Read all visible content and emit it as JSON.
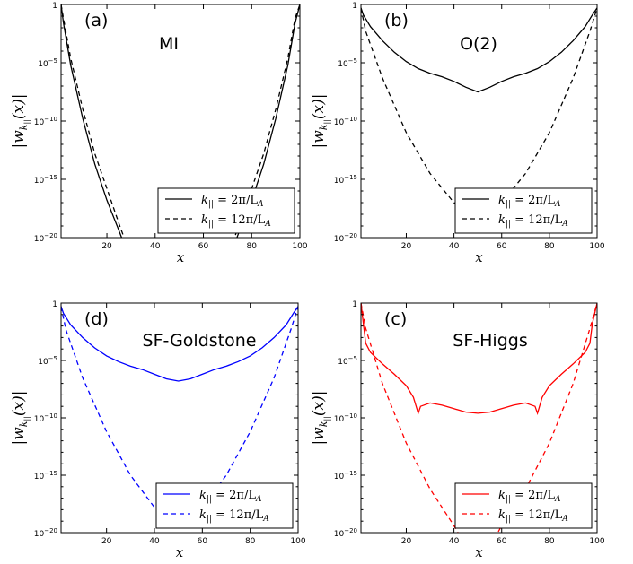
{
  "chart_data": [
    {
      "type": "line",
      "panel_label": "(a)",
      "title": "MI",
      "xlabel": "x",
      "ylabel": "|w_{k_||}(x)|",
      "xlim": [
        1,
        100
      ],
      "ylim_log10": [
        -20,
        0
      ],
      "scale": "log",
      "x_ticks": [
        "20",
        "40",
        "60",
        "80",
        "100"
      ],
      "x_tick_values": [
        20,
        40,
        60,
        80,
        100
      ],
      "y_ticks": [
        "1",
        "10^-5",
        "10^-10",
        "10^-15",
        "10^-20"
      ],
      "y_tick_exponents": [
        0,
        -5,
        -10,
        -15,
        -20
      ],
      "legend": [
        "k_|| = 2π/L_A",
        "k_|| = 12π/L_A"
      ],
      "color": "#000000",
      "series": [
        {
          "name": "k_|| = 2π/L_A",
          "style": "solid",
          "points": [
            [
              1,
              0
            ],
            [
              2,
              -1.6
            ],
            [
              5,
              -5.2
            ],
            [
              10,
              -9.8
            ],
            [
              15,
              -13.7
            ],
            [
              20,
              -16.8
            ],
            [
              25,
              -19.4
            ],
            [
              27,
              -20.5
            ],
            [
              73,
              -20.5
            ],
            [
              75,
              -19.4
            ],
            [
              80,
              -16.8
            ],
            [
              85,
              -13.7
            ],
            [
              90,
              -9.8
            ],
            [
              95,
              -5.2
            ],
            [
              98,
              -1.6
            ],
            [
              100,
              0
            ]
          ]
        },
        {
          "name": "k_|| = 12π/L_A",
          "style": "dashed",
          "points": [
            [
              1,
              0
            ],
            [
              2,
              -1.2
            ],
            [
              5,
              -4.6
            ],
            [
              10,
              -9.0
            ],
            [
              15,
              -12.8
            ],
            [
              20,
              -15.8
            ],
            [
              25,
              -18.8
            ],
            [
              28,
              -20.5
            ],
            [
              72,
              -20.5
            ],
            [
              75,
              -18.8
            ],
            [
              80,
              -15.8
            ],
            [
              85,
              -12.8
            ],
            [
              90,
              -9.0
            ],
            [
              95,
              -4.6
            ],
            [
              98,
              -1.2
            ],
            [
              100,
              0
            ]
          ]
        }
      ]
    },
    {
      "type": "line",
      "panel_label": "(b)",
      "title": "O(2)",
      "xlabel": "x",
      "ylabel": "|w_{k_||}(x)|",
      "xlim": [
        1,
        100
      ],
      "ylim_log10": [
        -20,
        0
      ],
      "scale": "log",
      "x_ticks": [
        "20",
        "40",
        "60",
        "80",
        "100"
      ],
      "x_tick_values": [
        20,
        40,
        60,
        80,
        100
      ],
      "y_ticks": [
        "1",
        "10^-5",
        "10^-10",
        "10^-15",
        "10^-20"
      ],
      "y_tick_exponents": [
        0,
        -5,
        -10,
        -15,
        -20
      ],
      "legend": [
        "k_|| = 2π/L_A",
        "k_|| = 12π/L_A"
      ],
      "color": "#000000",
      "series": [
        {
          "name": "k_|| = 2π/L_A",
          "style": "solid",
          "points": [
            [
              1,
              -0.3
            ],
            [
              2,
              -0.9
            ],
            [
              5,
              -1.9
            ],
            [
              10,
              -3.1
            ],
            [
              15,
              -4.1
            ],
            [
              20,
              -4.9
            ],
            [
              25,
              -5.5
            ],
            [
              30,
              -5.9
            ],
            [
              35,
              -6.2
            ],
            [
              40,
              -6.6
            ],
            [
              45,
              -7.1
            ],
            [
              50,
              -7.5
            ],
            [
              55,
              -7.1
            ],
            [
              60,
              -6.6
            ],
            [
              65,
              -6.2
            ],
            [
              70,
              -5.9
            ],
            [
              75,
              -5.5
            ],
            [
              80,
              -4.9
            ],
            [
              85,
              -4.1
            ],
            [
              90,
              -3.1
            ],
            [
              95,
              -1.9
            ],
            [
              98,
              -0.9
            ],
            [
              100,
              -0.3
            ]
          ]
        },
        {
          "name": "k_|| = 12π/L_A",
          "style": "dashed",
          "points": [
            [
              1,
              -0.3
            ],
            [
              3,
              -2.3
            ],
            [
              10,
              -6.3
            ],
            [
              20,
              -11.0
            ],
            [
              30,
              -14.5
            ],
            [
              40,
              -17.0
            ],
            [
              50,
              -18.8
            ],
            [
              60,
              -17.0
            ],
            [
              70,
              -14.5
            ],
            [
              80,
              -11.0
            ],
            [
              90,
              -6.3
            ],
            [
              97,
              -2.3
            ],
            [
              100,
              -0.3
            ]
          ]
        }
      ]
    },
    {
      "type": "line",
      "panel_label": "(d)",
      "title": "SF-Goldstone",
      "xlabel": "x",
      "ylabel": "|w_{k_||}(x)|",
      "xlim": [
        1,
        100
      ],
      "ylim_log10": [
        -20,
        0
      ],
      "scale": "log",
      "x_ticks": [
        "20",
        "40",
        "60",
        "80",
        "100"
      ],
      "x_tick_values": [
        20,
        40,
        60,
        80,
        100
      ],
      "y_ticks": [
        "1",
        "10^-5",
        "10^-10",
        "10^-15",
        "10^-20"
      ],
      "y_tick_exponents": [
        0,
        -5,
        -10,
        -15,
        -20
      ],
      "legend": [
        "k_|| = 2π/L_A",
        "k_|| = 12π/L_A"
      ],
      "color": "#0000ff",
      "series": [
        {
          "name": "k_|| = 2π/L_A",
          "style": "solid",
          "points": [
            [
              1,
              -0.3
            ],
            [
              2,
              -0.9
            ],
            [
              5,
              -1.9
            ],
            [
              10,
              -3.0
            ],
            [
              15,
              -3.9
            ],
            [
              20,
              -4.6
            ],
            [
              25,
              -5.1
            ],
            [
              30,
              -5.5
            ],
            [
              35,
              -5.8
            ],
            [
              40,
              -6.2
            ],
            [
              45,
              -6.6
            ],
            [
              50,
              -6.8
            ],
            [
              55,
              -6.6
            ],
            [
              60,
              -6.2
            ],
            [
              65,
              -5.8
            ],
            [
              70,
              -5.5
            ],
            [
              75,
              -5.1
            ],
            [
              80,
              -4.6
            ],
            [
              85,
              -3.9
            ],
            [
              90,
              -3.0
            ],
            [
              95,
              -1.9
            ],
            [
              98,
              -0.9
            ],
            [
              100,
              -0.3
            ]
          ]
        },
        {
          "name": "k_|| = 12π/L_A",
          "style": "dashed",
          "points": [
            [
              1,
              -0.3
            ],
            [
              3,
              -2.3
            ],
            [
              10,
              -6.5
            ],
            [
              20,
              -11.2
            ],
            [
              30,
              -15.0
            ],
            [
              40,
              -17.8
            ],
            [
              49,
              -19.6
            ],
            [
              51,
              -19.6
            ],
            [
              60,
              -17.8
            ],
            [
              70,
              -15.0
            ],
            [
              80,
              -11.2
            ],
            [
              90,
              -6.5
            ],
            [
              97,
              -2.3
            ],
            [
              100,
              -0.3
            ]
          ]
        }
      ]
    },
    {
      "type": "line",
      "panel_label": "(c)",
      "title": "SF-Higgs",
      "xlabel": "x",
      "ylabel": "|w_{k_||}(x)|",
      "xlim": [
        1,
        100
      ],
      "ylim_log10": [
        -20,
        0
      ],
      "scale": "log",
      "x_ticks": [
        "20",
        "40",
        "60",
        "80",
        "100"
      ],
      "x_tick_values": [
        20,
        40,
        60,
        80,
        100
      ],
      "y_ticks": [
        "1",
        "10^-5",
        "10^-10",
        "10^-15",
        "10^-20"
      ],
      "y_tick_exponents": [
        0,
        -5,
        -10,
        -15,
        -20
      ],
      "legend": [
        "k_|| = 2π/L_A",
        "k_|| = 12π/L_A"
      ],
      "color": "#ff0000",
      "series": [
        {
          "name": "k_|| = 2π/L_A",
          "style": "solid",
          "points": [
            [
              1,
              0
            ],
            [
              2,
              -1.8
            ],
            [
              3,
              -3.5
            ],
            [
              5,
              -4.3
            ],
            [
              10,
              -5.3
            ],
            [
              15,
              -6.2
            ],
            [
              20,
              -7.2
            ],
            [
              23,
              -8.2
            ],
            [
              25,
              -9.6
            ],
            [
              26,
              -9.0
            ],
            [
              30,
              -8.7
            ],
            [
              35,
              -8.9
            ],
            [
              40,
              -9.2
            ],
            [
              45,
              -9.5
            ],
            [
              50,
              -9.6
            ],
            [
              55,
              -9.5
            ],
            [
              60,
              -9.2
            ],
            [
              65,
              -8.9
            ],
            [
              70,
              -8.7
            ],
            [
              74,
              -9.0
            ],
            [
              75,
              -9.6
            ],
            [
              77,
              -8.2
            ],
            [
              80,
              -7.2
            ],
            [
              85,
              -6.2
            ],
            [
              90,
              -5.3
            ],
            [
              95,
              -4.3
            ],
            [
              97,
              -3.5
            ],
            [
              98,
              -1.8
            ],
            [
              100,
              0
            ]
          ]
        },
        {
          "name": "k_|| = 12π/L_A",
          "style": "dashed",
          "points": [
            [
              1,
              0
            ],
            [
              3,
              -2.2
            ],
            [
              10,
              -7.0
            ],
            [
              20,
              -12.2
            ],
            [
              30,
              -16.2
            ],
            [
              40,
              -19.4
            ],
            [
              43,
              -20.5
            ],
            [
              57,
              -20.5
            ],
            [
              60,
              -19.4
            ],
            [
              70,
              -16.2
            ],
            [
              80,
              -12.2
            ],
            [
              90,
              -7.0
            ],
            [
              97,
              -2.2
            ],
            [
              100,
              0
            ]
          ]
        }
      ]
    }
  ]
}
